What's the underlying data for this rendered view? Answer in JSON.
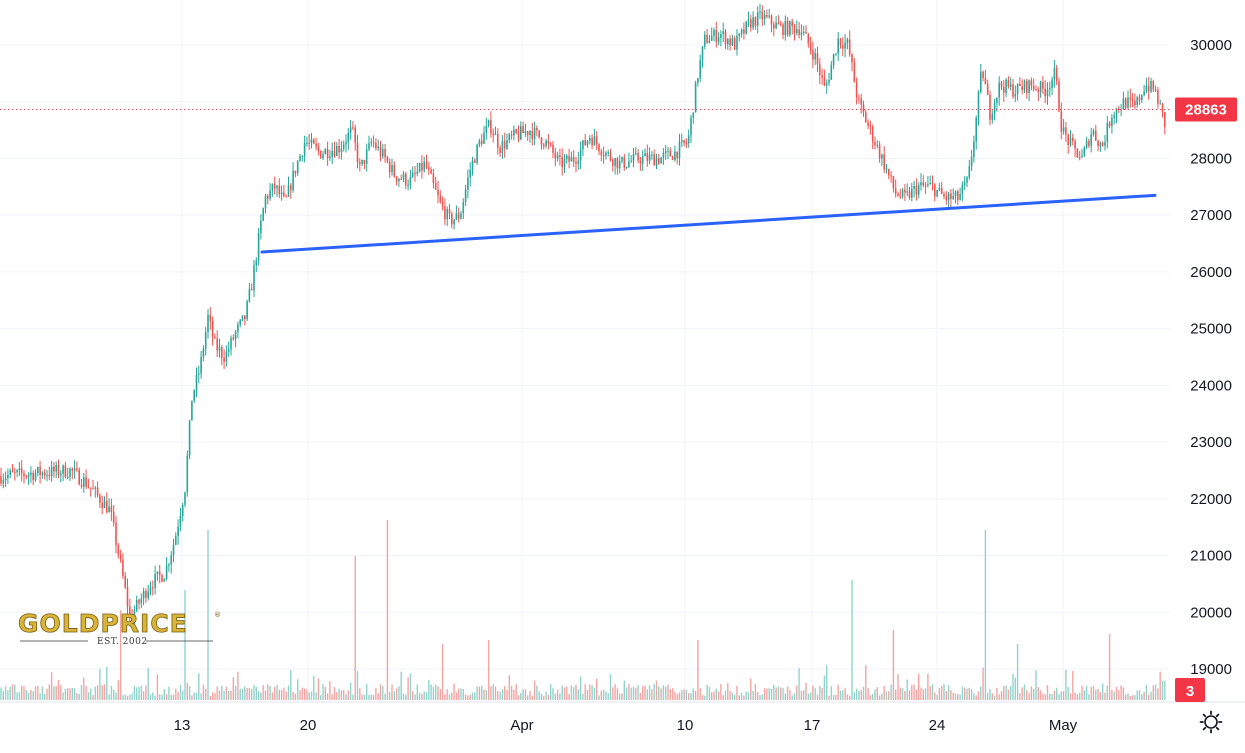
{
  "chart_data": {
    "type": "candlestick",
    "instrument_price_last": 28863,
    "last_price_label": "28863",
    "volume_last_label": "3",
    "y_axis": {
      "min": 18500,
      "max": 30800,
      "ticks": [
        30000,
        29000,
        28000,
        27000,
        26000,
        25000,
        24000,
        23000,
        22000,
        21000,
        20000,
        19000
      ],
      "tick_labels": [
        "30000",
        "",
        "28000",
        "27000",
        "26000",
        "25000",
        "24000",
        "23000",
        "22000",
        "21000",
        "20000",
        "19000"
      ]
    },
    "x_axis": {
      "tick_labels": [
        "13",
        "20",
        "Apr",
        "10",
        "17",
        "24",
        "May"
      ]
    },
    "price_path": [
      [
        0,
        22400
      ],
      [
        35,
        22450
      ],
      [
        70,
        22500
      ],
      [
        85,
        22300
      ],
      [
        110,
        21800
      ],
      [
        122,
        20700
      ],
      [
        130,
        19900
      ],
      [
        140,
        20200
      ],
      [
        150,
        20500
      ],
      [
        165,
        20700
      ],
      [
        175,
        21300
      ],
      [
        185,
        22200
      ],
      [
        192,
        23800
      ],
      [
        200,
        24300
      ],
      [
        208,
        25200
      ],
      [
        215,
        24700
      ],
      [
        225,
        24500
      ],
      [
        235,
        24900
      ],
      [
        245,
        25200
      ],
      [
        252,
        25800
      ],
      [
        258,
        26500
      ],
      [
        265,
        27300
      ],
      [
        275,
        27500
      ],
      [
        285,
        27200
      ],
      [
        295,
        27800
      ],
      [
        305,
        28300
      ],
      [
        320,
        28100
      ],
      [
        340,
        28200
      ],
      [
        352,
        28500
      ],
      [
        360,
        27800
      ],
      [
        372,
        28300
      ],
      [
        385,
        28000
      ],
      [
        395,
        27700
      ],
      [
        410,
        27600
      ],
      [
        425,
        27900
      ],
      [
        440,
        27200
      ],
      [
        450,
        26900
      ],
      [
        460,
        27000
      ],
      [
        470,
        27800
      ],
      [
        480,
        28300
      ],
      [
        490,
        28600
      ],
      [
        500,
        28200
      ],
      [
        515,
        28400
      ],
      [
        530,
        28500
      ],
      [
        545,
        28300
      ],
      [
        560,
        27900
      ],
      [
        575,
        28000
      ],
      [
        590,
        28400
      ],
      [
        605,
        28100
      ],
      [
        620,
        27900
      ],
      [
        640,
        28000
      ],
      [
        660,
        28000
      ],
      [
        675,
        28100
      ],
      [
        688,
        28300
      ],
      [
        698,
        29500
      ],
      [
        705,
        30100
      ],
      [
        720,
        30200
      ],
      [
        735,
        30000
      ],
      [
        750,
        30400
      ],
      [
        762,
        30500
      ],
      [
        780,
        30300
      ],
      [
        800,
        30300
      ],
      [
        815,
        29800
      ],
      [
        825,
        29200
      ],
      [
        838,
        30100
      ],
      [
        848,
        30000
      ],
      [
        858,
        29000
      ],
      [
        870,
        28500
      ],
      [
        882,
        28000
      ],
      [
        895,
        27400
      ],
      [
        905,
        27300
      ],
      [
        918,
        27500
      ],
      [
        932,
        27500
      ],
      [
        945,
        27300
      ],
      [
        958,
        27300
      ],
      [
        968,
        27600
      ],
      [
        975,
        28500
      ],
      [
        982,
        29600
      ],
      [
        990,
        28800
      ],
      [
        1000,
        29300
      ],
      [
        1015,
        29200
      ],
      [
        1030,
        29300
      ],
      [
        1045,
        29200
      ],
      [
        1055,
        29500
      ],
      [
        1062,
        28500
      ],
      [
        1072,
        28200
      ],
      [
        1082,
        28000
      ],
      [
        1092,
        28500
      ],
      [
        1102,
        28200
      ],
      [
        1112,
        28800
      ],
      [
        1125,
        29000
      ],
      [
        1135,
        28900
      ],
      [
        1145,
        29300
      ],
      [
        1155,
        29200
      ],
      [
        1165,
        28600
      ],
      [
        1168,
        28863
      ]
    ],
    "support_line": {
      "start": [
        262,
        26350
      ],
      "end": [
        1155,
        27350
      ]
    },
    "current_price_line": 28863,
    "volume_spikes": [
      [
        120,
        0.45
      ],
      [
        185,
        0.55
      ],
      [
        207,
        0.85
      ],
      [
        355,
        0.72
      ],
      [
        388,
        0.9
      ],
      [
        443,
        0.28
      ],
      [
        488,
        0.3
      ],
      [
        697,
        0.3
      ],
      [
        852,
        0.6
      ],
      [
        893,
        0.35
      ],
      [
        986,
        0.85
      ],
      [
        1017,
        0.28
      ],
      [
        1110,
        0.33
      ]
    ],
    "colors": {
      "up": "#26a69a",
      "down": "#ef5350",
      "support_line": "#2962ff",
      "price_tag": "#f23645",
      "grid": "#f0f3fa"
    }
  },
  "watermark": {
    "brand": "GOLDPRICE",
    "sub": "EST. 2002"
  }
}
